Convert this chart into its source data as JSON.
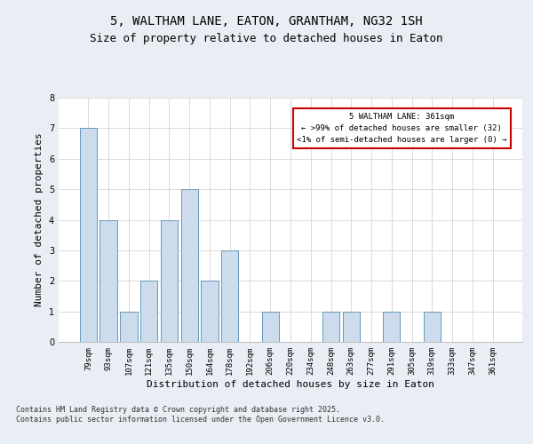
{
  "title1": "5, WALTHAM LANE, EATON, GRANTHAM, NG32 1SH",
  "title2": "Size of property relative to detached houses in Eaton",
  "xlabel": "Distribution of detached houses by size in Eaton",
  "ylabel": "Number of detached properties",
  "categories": [
    "79sqm",
    "93sqm",
    "107sqm",
    "121sqm",
    "135sqm",
    "150sqm",
    "164sqm",
    "178sqm",
    "192sqm",
    "206sqm",
    "220sqm",
    "234sqm",
    "248sqm",
    "263sqm",
    "277sqm",
    "291sqm",
    "305sqm",
    "319sqm",
    "333sqm",
    "347sqm",
    "361sqm"
  ],
  "values": [
    7,
    4,
    1,
    2,
    4,
    5,
    2,
    3,
    0,
    1,
    0,
    0,
    1,
    1,
    0,
    1,
    0,
    1,
    0,
    0,
    0
  ],
  "bar_color": "#ccdcec",
  "bar_edge_color": "#6699bb",
  "annotation_box_text": "5 WALTHAM LANE: 361sqm\n← >99% of detached houses are smaller (32)\n<1% of semi-detached houses are larger (0) →",
  "annotation_box_color": "#ffffff",
  "annotation_box_edge_color": "#cc0000",
  "annotation_text_fontsize": 6.5,
  "ylim": [
    0,
    8
  ],
  "yticks": [
    0,
    1,
    2,
    3,
    4,
    5,
    6,
    7,
    8
  ],
  "footer_text": "Contains HM Land Registry data © Crown copyright and database right 2025.\nContains public sector information licensed under the Open Government Licence v3.0.",
  "background_color": "#e8eef4",
  "plot_background_color": "#ffffff",
  "grid_color": "#cccccc",
  "title_fontsize": 10,
  "subtitle_fontsize": 9,
  "axis_label_fontsize": 8,
  "tick_fontsize": 6.5,
  "footer_fontsize": 6
}
